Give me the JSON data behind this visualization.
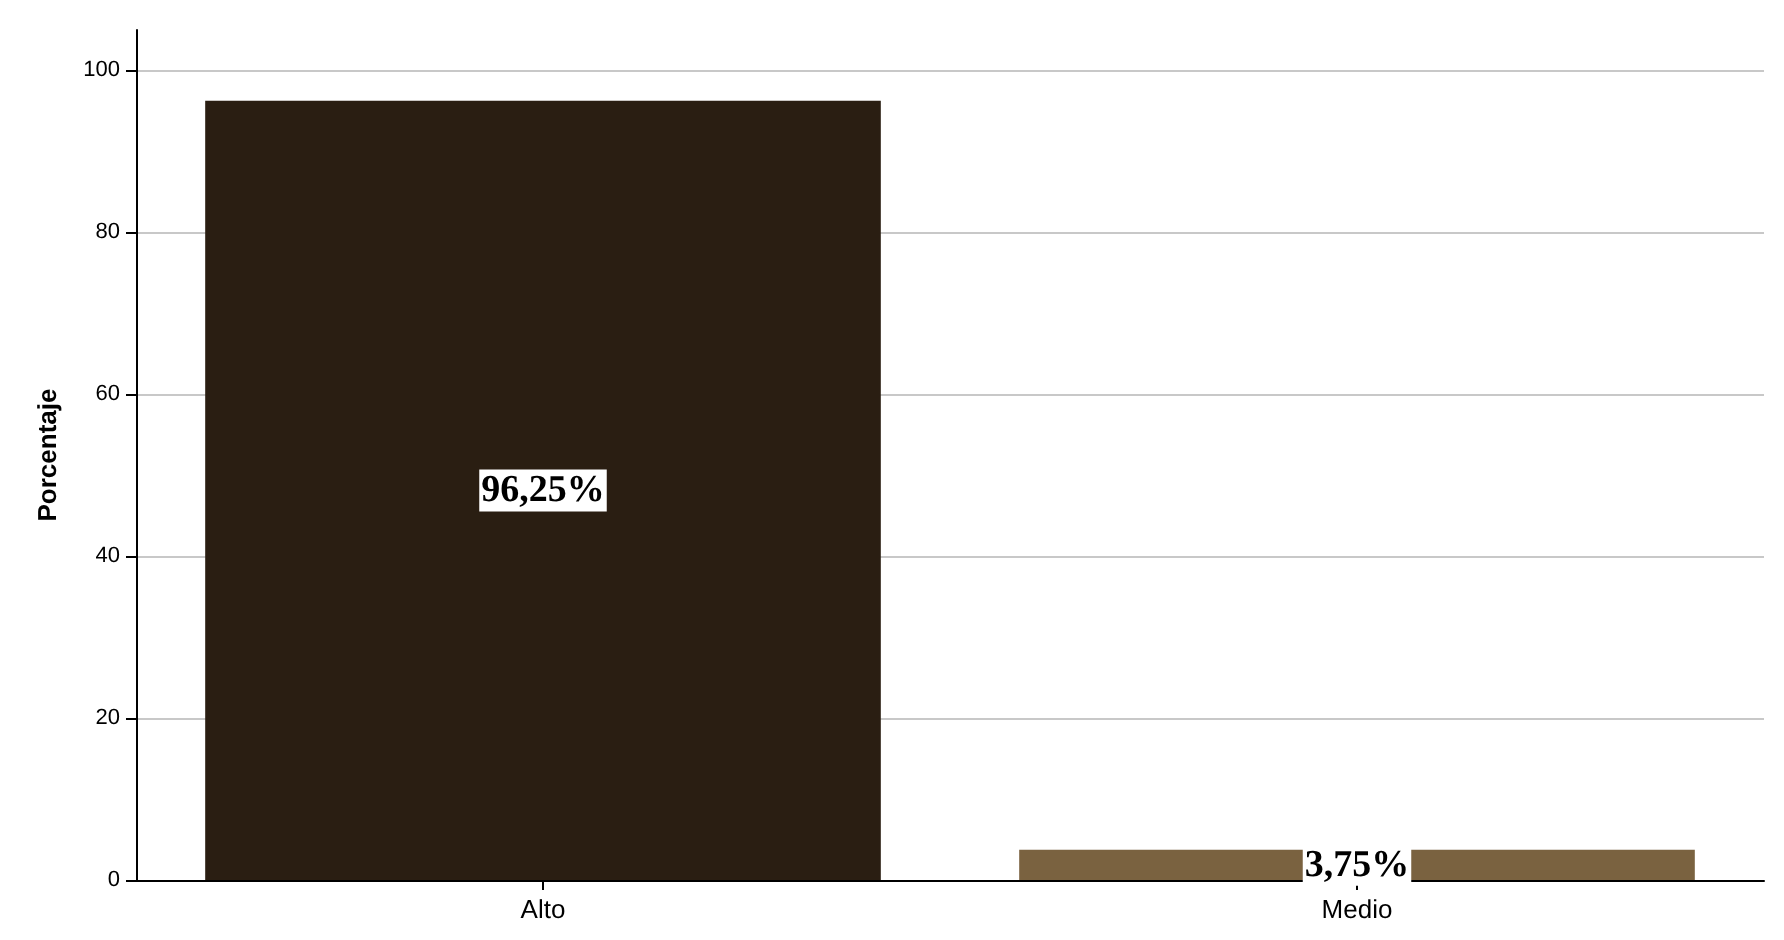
{
  "chart_data": {
    "type": "bar",
    "ylabel": "Porcentaje",
    "categories": [
      "Alto",
      "Medio"
    ],
    "values": [
      96.25,
      3.75
    ],
    "colors": [
      "#2a1e12",
      "#7a6240"
    ],
    "value_labels": [
      "96,25%",
      "3,75%"
    ],
    "ylim": [
      0,
      105
    ],
    "yticks": [
      0,
      20,
      40,
      60,
      80,
      100
    ],
    "grid": "y"
  }
}
